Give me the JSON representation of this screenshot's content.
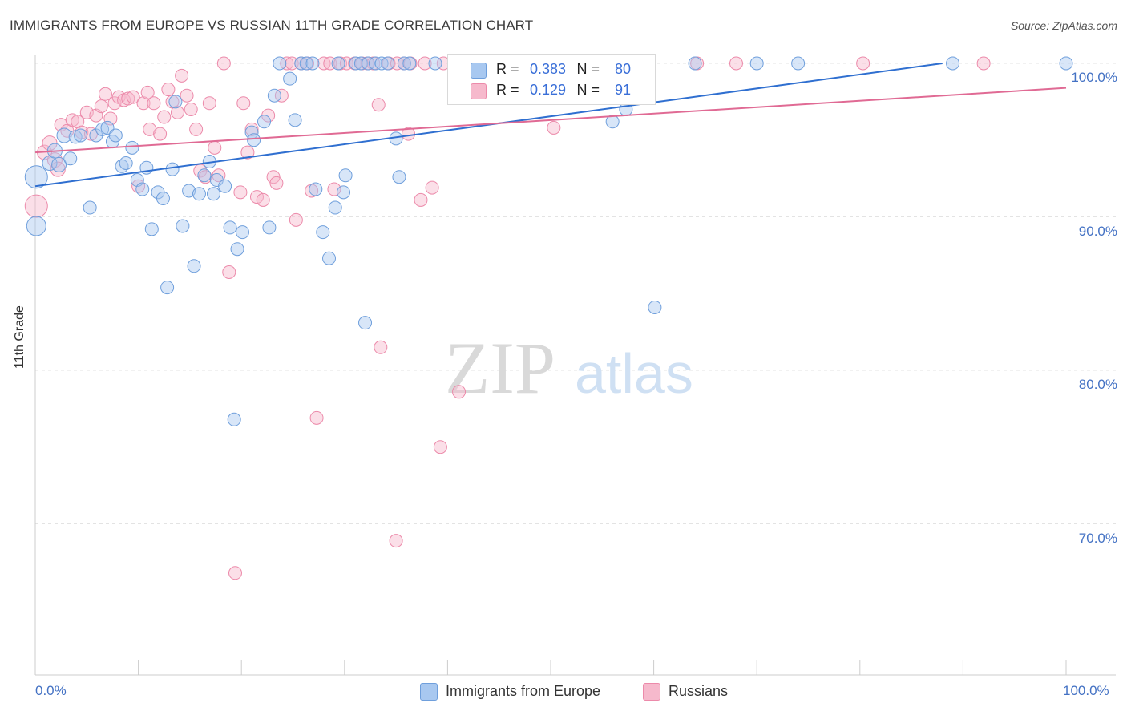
{
  "title": "IMMIGRANTS FROM EUROPE VS RUSSIAN 11TH GRADE CORRELATION CHART",
  "source": "Source: ZipAtlas.com",
  "watermark_zip": "ZIP",
  "watermark_atlas": "atlas",
  "colors": {
    "blue_fill": "#a8c8f0",
    "blue_stroke": "#6f9fdc",
    "blue_line": "#2f6fd0",
    "pink_fill": "#f6b9cc",
    "pink_stroke": "#ec8aaa",
    "pink_line": "#e06a94",
    "grid": "#e3e3e3",
    "tick_text": "#4472c4"
  },
  "legend": {
    "r_label": "R =",
    "n_label": "N =",
    "series1": {
      "r": "0.383",
      "n": "80"
    },
    "series2": {
      "r": "0.129",
      "n": "91"
    }
  },
  "chart_data": {
    "type": "scatter",
    "title": "IMMIGRANTS FROM EUROPE VS RUSSIAN 11TH GRADE CORRELATION CHART",
    "xlabel": "",
    "ylabel": "11th Grade",
    "xlim": [
      0,
      100
    ],
    "ylim": [
      60,
      101.5
    ],
    "x_tick_labels": [
      "0.0%",
      "100.0%"
    ],
    "y_ticks": [
      {
        "value": 100,
        "label": "100.0%"
      },
      {
        "value": 90,
        "label": "90.0%"
      },
      {
        "value": 80,
        "label": "80.0%"
      },
      {
        "value": 70,
        "label": "70.0%"
      }
    ],
    "grid": true,
    "legend_position": "top-center",
    "series": [
      {
        "name": "Immigrants from Europe",
        "color": "#a8c8f0",
        "trend": {
          "x": [
            0,
            88
          ],
          "y": [
            92.0,
            100.0
          ]
        },
        "points": [
          [
            0.1,
            92.6,
            14
          ],
          [
            0.1,
            89.4,
            12
          ],
          [
            1.4,
            93.5,
            9
          ],
          [
            1.9,
            94.3,
            9
          ],
          [
            2.3,
            93.4,
            9
          ],
          [
            2.8,
            95.3,
            9
          ],
          [
            3.4,
            93.8,
            8
          ],
          [
            3.9,
            95.2,
            8
          ],
          [
            4.4,
            95.3,
            8
          ],
          [
            5.3,
            90.6,
            8
          ],
          [
            5.9,
            95.3,
            8
          ],
          [
            6.5,
            95.7,
            8
          ],
          [
            7.0,
            95.8,
            8
          ],
          [
            7.5,
            94.9,
            8
          ],
          [
            7.8,
            95.3,
            8
          ],
          [
            8.4,
            93.3,
            8
          ],
          [
            8.8,
            93.5,
            8
          ],
          [
            9.4,
            94.5,
            8
          ],
          [
            9.9,
            92.4,
            8
          ],
          [
            10.4,
            91.8,
            8
          ],
          [
            10.8,
            93.2,
            8
          ],
          [
            11.3,
            89.2,
            8
          ],
          [
            11.9,
            91.6,
            8
          ],
          [
            12.4,
            91.2,
            8
          ],
          [
            12.8,
            85.4,
            8
          ],
          [
            13.3,
            93.1,
            8
          ],
          [
            13.6,
            97.5,
            8
          ],
          [
            14.3,
            89.4,
            8
          ],
          [
            14.9,
            91.7,
            8
          ],
          [
            15.4,
            86.8,
            8
          ],
          [
            15.9,
            91.5,
            8
          ],
          [
            16.4,
            92.7,
            8
          ],
          [
            16.9,
            93.6,
            8
          ],
          [
            17.3,
            91.5,
            8
          ],
          [
            17.6,
            92.4,
            8
          ],
          [
            18.4,
            92.0,
            8
          ],
          [
            18.9,
            89.3,
            8
          ],
          [
            19.3,
            76.8,
            8
          ],
          [
            19.6,
            87.9,
            8
          ],
          [
            20.1,
            89.0,
            8
          ],
          [
            21.0,
            95.5,
            8
          ],
          [
            21.2,
            95.0,
            8
          ],
          [
            22.2,
            96.2,
            8
          ],
          [
            22.7,
            89.3,
            8
          ],
          [
            23.2,
            97.9,
            8
          ],
          [
            23.7,
            100.0,
            8
          ],
          [
            24.7,
            99.0,
            8
          ],
          [
            25.2,
            96.3,
            8
          ],
          [
            25.8,
            100.0,
            8
          ],
          [
            26.3,
            100.0,
            8
          ],
          [
            26.9,
            100.0,
            8
          ],
          [
            27.2,
            91.8,
            8
          ],
          [
            27.9,
            89.0,
            8
          ],
          [
            28.5,
            87.3,
            8
          ],
          [
            29.1,
            90.6,
            8
          ],
          [
            29.4,
            100.0,
            8
          ],
          [
            29.9,
            91.6,
            8
          ],
          [
            30.1,
            92.7,
            8
          ],
          [
            31.1,
            100.0,
            8
          ],
          [
            31.6,
            100.0,
            8
          ],
          [
            32.0,
            83.1,
            8
          ],
          [
            32.3,
            100.0,
            8
          ],
          [
            33.0,
            100.0,
            8
          ],
          [
            33.6,
            100.0,
            8
          ],
          [
            34.2,
            100.0,
            8
          ],
          [
            35.0,
            95.1,
            8
          ],
          [
            35.3,
            92.6,
            8
          ],
          [
            35.8,
            100.0,
            8
          ],
          [
            36.3,
            100.0,
            8
          ],
          [
            38.8,
            100.0,
            8
          ],
          [
            41.0,
            100.0,
            8
          ],
          [
            56.0,
            96.2,
            8
          ],
          [
            57.3,
            97.0,
            8
          ],
          [
            60.1,
            84.1,
            8
          ],
          [
            64.0,
            100.0,
            8
          ],
          [
            70.0,
            100.0,
            8
          ],
          [
            74.0,
            100.0,
            8
          ],
          [
            89.0,
            100.0,
            8
          ],
          [
            100.0,
            100.0,
            8
          ],
          [
            40.9,
            100.0,
            8
          ]
        ]
      },
      {
        "name": "Russians",
        "color": "#f6b9cc",
        "trend": {
          "x": [
            0,
            100
          ],
          "y": [
            94.2,
            98.4
          ]
        },
        "points": [
          [
            0.1,
            90.7,
            14
          ],
          [
            0.9,
            94.2,
            9
          ],
          [
            1.4,
            94.8,
            9
          ],
          [
            1.9,
            93.7,
            9
          ],
          [
            2.2,
            93.1,
            9
          ],
          [
            2.5,
            96.0,
            8
          ],
          [
            3.1,
            95.6,
            8
          ],
          [
            3.6,
            96.3,
            8
          ],
          [
            4.1,
            96.2,
            8
          ],
          [
            4.5,
            95.5,
            8
          ],
          [
            5.0,
            96.8,
            8
          ],
          [
            5.4,
            95.4,
            8
          ],
          [
            5.9,
            96.6,
            8
          ],
          [
            6.4,
            97.2,
            8
          ],
          [
            6.8,
            98.0,
            8
          ],
          [
            7.3,
            96.4,
            8
          ],
          [
            7.7,
            97.4,
            8
          ],
          [
            8.1,
            97.8,
            8
          ],
          [
            8.6,
            97.6,
            8
          ],
          [
            9.0,
            97.7,
            8
          ],
          [
            9.5,
            97.8,
            8
          ],
          [
            10.0,
            92.0,
            8
          ],
          [
            10.5,
            97.4,
            8
          ],
          [
            10.9,
            98.1,
            8
          ],
          [
            11.1,
            95.7,
            8
          ],
          [
            11.5,
            97.4,
            8
          ],
          [
            12.1,
            95.4,
            8
          ],
          [
            12.5,
            96.5,
            8
          ],
          [
            12.9,
            98.3,
            8
          ],
          [
            13.3,
            97.5,
            8
          ],
          [
            13.8,
            96.8,
            8
          ],
          [
            14.2,
            99.2,
            8
          ],
          [
            14.7,
            97.9,
            8
          ],
          [
            15.1,
            97.0,
            8
          ],
          [
            15.6,
            95.7,
            8
          ],
          [
            16.0,
            93.0,
            8
          ],
          [
            16.5,
            92.6,
            8
          ],
          [
            16.9,
            97.4,
            8
          ],
          [
            17.4,
            94.5,
            8
          ],
          [
            17.8,
            92.7,
            8
          ],
          [
            18.3,
            100.0,
            8
          ],
          [
            18.8,
            86.4,
            8
          ],
          [
            19.4,
            66.8,
            8
          ],
          [
            19.9,
            91.6,
            8
          ],
          [
            20.2,
            97.4,
            8
          ],
          [
            20.6,
            94.2,
            8
          ],
          [
            21.0,
            95.7,
            8
          ],
          [
            21.5,
            91.3,
            8
          ],
          [
            22.1,
            91.1,
            8
          ],
          [
            22.6,
            96.6,
            8
          ],
          [
            23.1,
            92.6,
            8
          ],
          [
            23.4,
            92.2,
            8
          ],
          [
            23.9,
            97.9,
            8
          ],
          [
            24.4,
            100.0,
            8
          ],
          [
            24.9,
            100.0,
            8
          ],
          [
            25.3,
            89.8,
            8
          ],
          [
            25.8,
            100.0,
            8
          ],
          [
            26.4,
            100.0,
            8
          ],
          [
            26.8,
            91.7,
            8
          ],
          [
            27.3,
            76.9,
            8
          ],
          [
            28.0,
            100.0,
            8
          ],
          [
            28.6,
            100.0,
            8
          ],
          [
            29.0,
            91.8,
            8
          ],
          [
            29.6,
            100.0,
            8
          ],
          [
            30.2,
            100.0,
            8
          ],
          [
            31.0,
            100.0,
            8
          ],
          [
            31.7,
            100.0,
            8
          ],
          [
            32.2,
            100.0,
            8
          ],
          [
            32.8,
            100.0,
            8
          ],
          [
            33.3,
            97.3,
            8
          ],
          [
            33.5,
            81.5,
            8
          ],
          [
            34.3,
            100.0,
            8
          ],
          [
            35.1,
            100.0,
            8
          ],
          [
            35.8,
            100.0,
            8
          ],
          [
            36.2,
            95.4,
            8
          ],
          [
            35.0,
            68.9,
            8
          ],
          [
            36.4,
            100.0,
            8
          ],
          [
            37.4,
            91.1,
            8
          ],
          [
            37.8,
            100.0,
            8
          ],
          [
            38.5,
            91.9,
            8
          ],
          [
            39.6,
            100.0,
            8
          ],
          [
            39.3,
            75.0,
            8
          ],
          [
            41.1,
            78.6,
            8
          ],
          [
            42.3,
            100.0,
            8
          ],
          [
            46.6,
            100.0,
            8
          ],
          [
            50.3,
            95.8,
            8
          ],
          [
            59.5,
            100.0,
            8
          ],
          [
            64.2,
            100.0,
            8
          ],
          [
            80.3,
            100.0,
            8
          ],
          [
            92.0,
            100.0,
            8
          ],
          [
            68.0,
            100.0,
            8
          ]
        ]
      }
    ]
  }
}
